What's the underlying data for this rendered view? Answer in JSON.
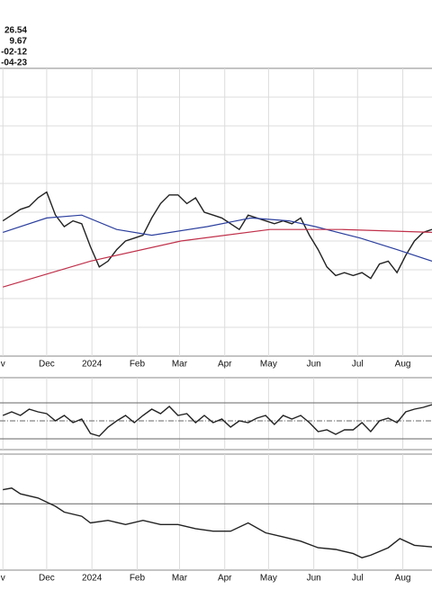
{
  "header": {
    "lines": [
      "26.54",
      "9.67",
      "-02-12",
      "-04-23"
    ]
  },
  "chart_data": [
    {
      "type": "line",
      "x": [
        0,
        6,
        12,
        18,
        24,
        30,
        36,
        42,
        48,
        54,
        60,
        66,
        72,
        78,
        84,
        90,
        96,
        102,
        108,
        114,
        120,
        126,
        132,
        138,
        144,
        150,
        156,
        162,
        168,
        174,
        180,
        186,
        192,
        198,
        204,
        210,
        216,
        222,
        228,
        234,
        240,
        246,
        252,
        258,
        264,
        270,
        276,
        282,
        288,
        294
      ],
      "xlim": [
        -2,
        294
      ],
      "ylim": [
        0,
        100
      ],
      "yticks": [
        10,
        20,
        30,
        40,
        50,
        60,
        70,
        80,
        90
      ],
      "grid": true,
      "xticks": [
        {
          "value": 0,
          "label": "v"
        },
        {
          "value": 30,
          "label": "Dec"
        },
        {
          "value": 61,
          "label": "2024"
        },
        {
          "value": 92,
          "label": "Feb"
        },
        {
          "value": 121,
          "label": "Mar"
        },
        {
          "value": 152,
          "label": "Apr"
        },
        {
          "value": 182,
          "label": "May"
        },
        {
          "value": 213,
          "label": "Jun"
        },
        {
          "value": 243,
          "label": "Jul"
        },
        {
          "value": 274,
          "label": "Aug"
        }
      ],
      "series": [
        {
          "color": "#222222",
          "values": [
            47,
            49,
            51,
            52,
            55,
            57,
            49,
            45,
            47,
            46,
            38,
            31,
            33,
            37,
            40,
            41,
            42,
            48,
            53,
            56,
            56,
            53,
            55,
            50,
            49,
            48,
            46,
            44,
            49,
            48,
            47,
            46,
            47,
            46,
            48,
            42,
            37,
            31,
            28,
            29,
            28,
            29,
            27,
            32,
            33,
            29,
            35,
            40,
            43,
            44
          ]
        },
        {
          "color": "#2b3f9e",
          "x": [
            0,
            30,
            54,
            78,
            102,
            140,
            170,
            196,
            214,
            245,
            270,
            294
          ],
          "values": [
            43,
            48,
            49,
            44,
            42,
            45,
            48,
            47,
            45,
            41,
            37,
            33
          ]
        },
        {
          "color": "#c0304a",
          "x": [
            0,
            60,
            122,
            183,
            232,
            294
          ],
          "values": [
            24,
            33,
            40,
            44,
            44,
            43
          ]
        }
      ]
    },
    {
      "type": "line",
      "x": [
        0,
        6,
        12,
        18,
        24,
        30,
        36,
        42,
        48,
        54,
        60,
        66,
        72,
        78,
        84,
        90,
        96,
        102,
        108,
        114,
        120,
        126,
        132,
        138,
        144,
        150,
        156,
        162,
        168,
        174,
        180,
        186,
        192,
        198,
        204,
        210,
        216,
        222,
        228,
        234,
        240,
        246,
        252,
        258,
        264,
        270,
        276,
        282,
        288,
        294
      ],
      "xlim": [
        -2,
        294
      ],
      "ylim": [
        18,
        98
      ],
      "yticks": [
        30,
        50,
        70
      ],
      "grid": true,
      "series": [
        {
          "color": "#222222",
          "values": [
            56,
            60,
            56,
            63,
            60,
            58,
            50,
            56,
            48,
            52,
            36,
            33,
            43,
            50,
            56,
            48,
            56,
            63,
            58,
            66,
            56,
            58,
            48,
            56,
            48,
            52,
            43,
            50,
            48,
            53,
            56,
            46,
            56,
            52,
            56,
            48,
            38,
            40,
            35,
            40,
            40,
            48,
            38,
            50,
            53,
            48,
            60,
            63,
            65,
            68
          ]
        }
      ]
    },
    {
      "type": "line",
      "x": [
        0,
        6,
        12,
        24,
        36,
        42,
        54,
        60,
        72,
        84,
        96,
        108,
        120,
        132,
        144,
        156,
        168,
        180,
        192,
        204,
        216,
        228,
        240,
        246,
        252,
        264,
        272,
        282,
        294
      ],
      "xlim": [
        -2,
        294
      ],
      "ylim": [
        0,
        140
      ],
      "yticks": [
        80
      ],
      "grid": true,
      "xticks": [
        {
          "value": 0,
          "label": "v"
        },
        {
          "value": 30,
          "label": "Dec"
        },
        {
          "value": 61,
          "label": "2024"
        },
        {
          "value": 92,
          "label": "Feb"
        },
        {
          "value": 121,
          "label": "Mar"
        },
        {
          "value": 152,
          "label": "Apr"
        },
        {
          "value": 182,
          "label": "May"
        },
        {
          "value": 213,
          "label": "Jun"
        },
        {
          "value": 243,
          "label": "Jul"
        },
        {
          "value": 274,
          "label": "Aug"
        }
      ],
      "series": [
        {
          "color": "#222222",
          "values": [
            97,
            99,
            92,
            87,
            77,
            70,
            65,
            57,
            60,
            55,
            60,
            55,
            55,
            50,
            47,
            47,
            57,
            45,
            40,
            35,
            27,
            25,
            20,
            15,
            18,
            27,
            38,
            30,
            28
          ]
        }
      ]
    }
  ]
}
